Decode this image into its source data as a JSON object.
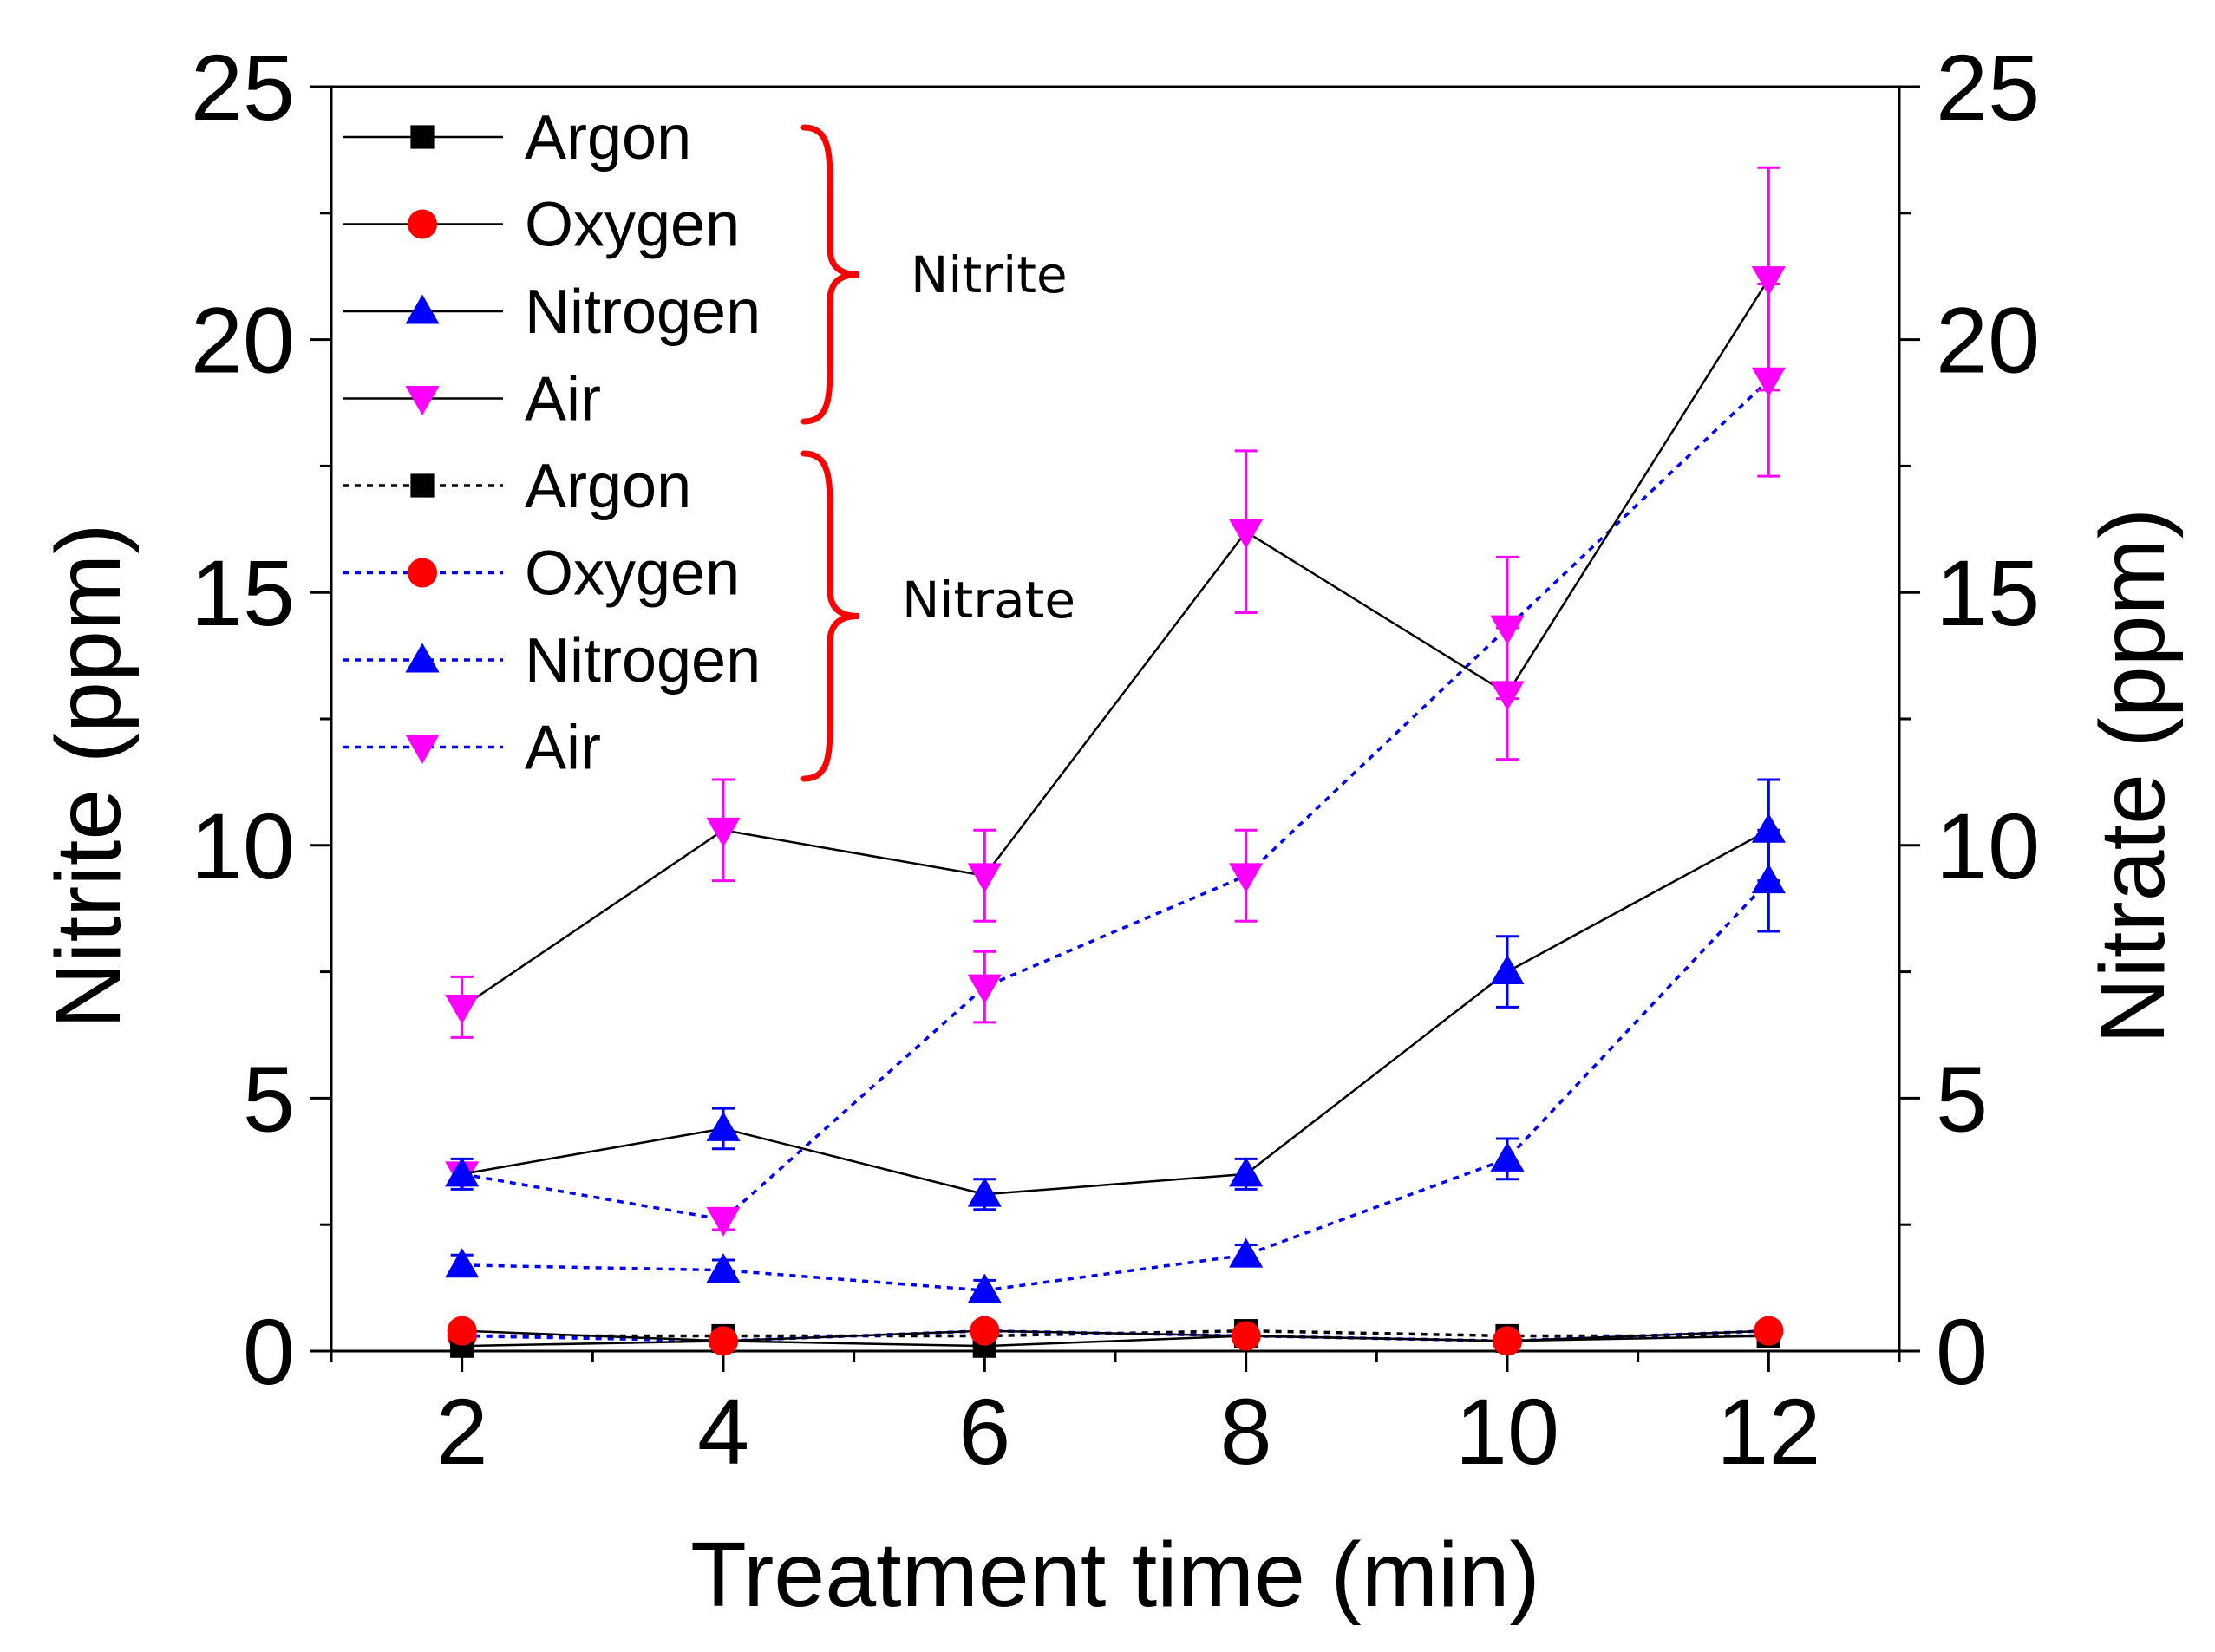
{
  "chart_data": {
    "type": "line",
    "xlabel": "Treatment time (min)",
    "ylabel_left": "Nitrite (ppm)",
    "ylabel_right": "Nitrate (ppm)",
    "xlim": [
      1,
      13
    ],
    "ylim": [
      0,
      25
    ],
    "x_ticks": [
      2,
      4,
      6,
      8,
      10,
      12
    ],
    "y_ticks": [
      0,
      5,
      10,
      15,
      20,
      25
    ],
    "legend_position": "top-left",
    "groups": [
      {
        "name": "Nitrite",
        "line_style": "solid"
      },
      {
        "name": "Nitrate",
        "line_style": "dotted"
      }
    ],
    "x": [
      2,
      4,
      6,
      8,
      10,
      12
    ],
    "series": [
      {
        "name": "Argon",
        "group": "Nitrite",
        "marker": "square",
        "color": "#000000",
        "line_color": "#000000",
        "line_style": "solid",
        "values": [
          0.1,
          0.2,
          0.1,
          0.3,
          0.2,
          0.3
        ],
        "errors": [
          0,
          0,
          0,
          0,
          0,
          0
        ]
      },
      {
        "name": "Oxygen",
        "group": "Nitrite",
        "marker": "circle",
        "color": "#ff0000",
        "line_color": "#000000",
        "line_style": "solid",
        "values": [
          0.4,
          0.2,
          0.4,
          0.3,
          0.2,
          0.4
        ],
        "errors": [
          0,
          0,
          0,
          0,
          0,
          0
        ]
      },
      {
        "name": "Nitrogen",
        "group": "Nitrite",
        "marker": "triangle-up",
        "color": "#0000ff",
        "line_color": "#000000",
        "line_style": "solid",
        "values": [
          3.5,
          4.4,
          3.1,
          3.5,
          7.5,
          10.3
        ],
        "errors": [
          0.3,
          0.4,
          0.3,
          0.3,
          0.7,
          1.0
        ]
      },
      {
        "name": "Air",
        "group": "Nitrite",
        "marker": "triangle-down",
        "color": "#ff00ff",
        "line_color": "#000000",
        "line_style": "solid",
        "values": [
          6.8,
          10.3,
          9.4,
          16.2,
          13.0,
          21.2
        ],
        "errors": [
          0.6,
          1.0,
          0.9,
          1.6,
          1.3,
          2.2
        ]
      },
      {
        "name": "Argon",
        "group": "Nitrate",
        "marker": "square",
        "color": "#000000",
        "line_color": "#000000",
        "line_style": "dotted",
        "values": [
          0.3,
          0.3,
          0.3,
          0.4,
          0.3,
          0.3
        ],
        "errors": [
          0,
          0,
          0,
          0,
          0,
          0
        ]
      },
      {
        "name": "Oxygen",
        "group": "Nitrate",
        "marker": "circle",
        "color": "#ff0000",
        "line_color": "#0000ff",
        "line_style": "dotted",
        "values": [
          0.3,
          0.2,
          0.4,
          0.3,
          0.2,
          0.4
        ],
        "errors": [
          0,
          0,
          0,
          0,
          0,
          0
        ]
      },
      {
        "name": "Nitrogen",
        "group": "Nitrate",
        "marker": "triangle-up",
        "color": "#0000ff",
        "line_color": "#0000ff",
        "line_style": "dotted",
        "values": [
          1.7,
          1.6,
          1.2,
          1.9,
          3.8,
          9.3
        ],
        "errors": [
          0.2,
          0.2,
          0.2,
          0.2,
          0.4,
          1.0
        ]
      },
      {
        "name": "Air",
        "group": "Nitrate",
        "marker": "triangle-down",
        "color": "#ff00ff",
        "line_color": "#0000ff",
        "line_style": "dotted",
        "values": [
          3.5,
          2.6,
          7.2,
          9.4,
          14.3,
          19.2
        ],
        "errors": [
          0.2,
          0.2,
          0.7,
          0.9,
          1.4,
          1.9
        ]
      }
    ]
  }
}
